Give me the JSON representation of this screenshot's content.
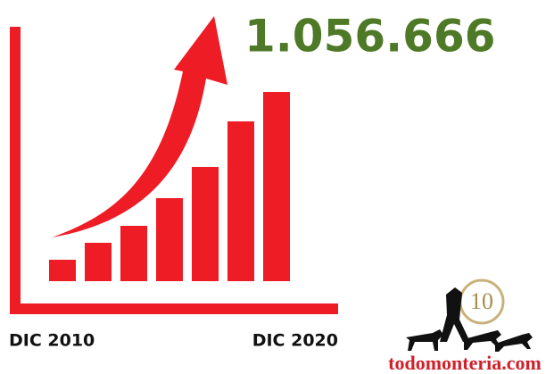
{
  "chart_data": {
    "type": "bar",
    "title": "1.056.666",
    "categories": [
      "DIC 2010",
      null,
      null,
      null,
      null,
      null,
      "DIC 2020"
    ],
    "values": [
      24,
      43,
      62,
      93,
      128,
      179,
      212
    ],
    "color": "#ee1c25",
    "title_color": "#4e7a27"
  },
  "logo": {
    "badge": "10",
    "text": "todomonteria.com"
  }
}
